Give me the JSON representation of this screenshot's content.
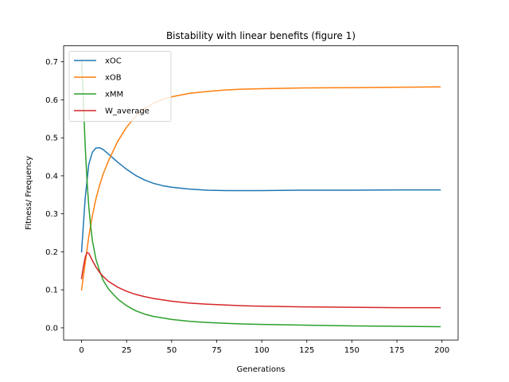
{
  "chart_data": {
    "type": "line",
    "title": "Bistability with linear benefits (figure 1)",
    "xlabel": "Generations",
    "ylabel": "Fitness/ Frequency",
    "xlim": [
      -9.95,
      208.95
    ],
    "ylim": [
      -0.032,
      0.742
    ],
    "xticks": [
      0,
      25,
      50,
      75,
      100,
      125,
      150,
      175,
      200
    ],
    "yticks": [
      0.0,
      0.1,
      0.2,
      0.3,
      0.4,
      0.5,
      0.6,
      0.7
    ],
    "xtick_labels": [
      "0",
      "25",
      "50",
      "75",
      "100",
      "125",
      "150",
      "175",
      "200"
    ],
    "ytick_labels": [
      "0.0",
      "0.1",
      "0.2",
      "0.3",
      "0.4",
      "0.5",
      "0.6",
      "0.7"
    ],
    "grid": false,
    "legend_position": "top-left",
    "series": [
      {
        "name": "xOC",
        "color": "#1f77b4",
        "points": [
          [
            0,
            0.2
          ],
          [
            2,
            0.34
          ],
          [
            4,
            0.43
          ],
          [
            6,
            0.462
          ],
          [
            8,
            0.473
          ],
          [
            10,
            0.474
          ],
          [
            12,
            0.469
          ],
          [
            15,
            0.457
          ],
          [
            20,
            0.436
          ],
          [
            25,
            0.417
          ],
          [
            30,
            0.401
          ],
          [
            35,
            0.389
          ],
          [
            40,
            0.38
          ],
          [
            45,
            0.374
          ],
          [
            50,
            0.37
          ],
          [
            60,
            0.365
          ],
          [
            70,
            0.362
          ],
          [
            80,
            0.361
          ],
          [
            90,
            0.361
          ],
          [
            100,
            0.361
          ],
          [
            120,
            0.362
          ],
          [
            150,
            0.362
          ],
          [
            175,
            0.363
          ],
          [
            199,
            0.363
          ]
        ]
      },
      {
        "name": "xOB",
        "color": "#ff7f0e",
        "points": [
          [
            0,
            0.1
          ],
          [
            2,
            0.17
          ],
          [
            4,
            0.24
          ],
          [
            6,
            0.295
          ],
          [
            8,
            0.34
          ],
          [
            10,
            0.375
          ],
          [
            12,
            0.405
          ],
          [
            15,
            0.44
          ],
          [
            20,
            0.49
          ],
          [
            25,
            0.528
          ],
          [
            30,
            0.557
          ],
          [
            35,
            0.577
          ],
          [
            40,
            0.591
          ],
          [
            45,
            0.601
          ],
          [
            50,
            0.608
          ],
          [
            60,
            0.617
          ],
          [
            70,
            0.622
          ],
          [
            80,
            0.626
          ],
          [
            90,
            0.628
          ],
          [
            100,
            0.629
          ],
          [
            120,
            0.631
          ],
          [
            150,
            0.632
          ],
          [
            175,
            0.633
          ],
          [
            199,
            0.634
          ]
        ]
      },
      {
        "name": "xMM",
        "color": "#2ca02c",
        "points": [
          [
            0,
            0.7
          ],
          [
            1,
            0.6
          ],
          [
            2,
            0.48
          ],
          [
            3,
            0.39
          ],
          [
            4,
            0.32
          ],
          [
            5,
            0.27
          ],
          [
            6,
            0.23
          ],
          [
            8,
            0.18
          ],
          [
            10,
            0.15
          ],
          [
            12,
            0.125
          ],
          [
            15,
            0.102
          ],
          [
            20,
            0.076
          ],
          [
            25,
            0.058
          ],
          [
            30,
            0.045
          ],
          [
            35,
            0.036
          ],
          [
            40,
            0.03
          ],
          [
            50,
            0.022
          ],
          [
            60,
            0.017
          ],
          [
            70,
            0.014
          ],
          [
            80,
            0.012
          ],
          [
            90,
            0.01
          ],
          [
            100,
            0.009
          ],
          [
            125,
            0.007
          ],
          [
            150,
            0.005
          ],
          [
            175,
            0.004
          ],
          [
            199,
            0.003
          ]
        ]
      },
      {
        "name": "W_average",
        "color": "#d62728",
        "points": [
          [
            0,
            0.13
          ],
          [
            1,
            0.16
          ],
          [
            2,
            0.185
          ],
          [
            3,
            0.198
          ],
          [
            4,
            0.196
          ],
          [
            5,
            0.187
          ],
          [
            6,
            0.177
          ],
          [
            8,
            0.16
          ],
          [
            10,
            0.146
          ],
          [
            12,
            0.135
          ],
          [
            15,
            0.122
          ],
          [
            20,
            0.107
          ],
          [
            25,
            0.096
          ],
          [
            30,
            0.088
          ],
          [
            35,
            0.082
          ],
          [
            40,
            0.077
          ],
          [
            50,
            0.07
          ],
          [
            60,
            0.065
          ],
          [
            70,
            0.062
          ],
          [
            80,
            0.06
          ],
          [
            90,
            0.058
          ],
          [
            100,
            0.057
          ],
          [
            125,
            0.055
          ],
          [
            150,
            0.054
          ],
          [
            175,
            0.053
          ],
          [
            199,
            0.053
          ]
        ]
      }
    ]
  }
}
